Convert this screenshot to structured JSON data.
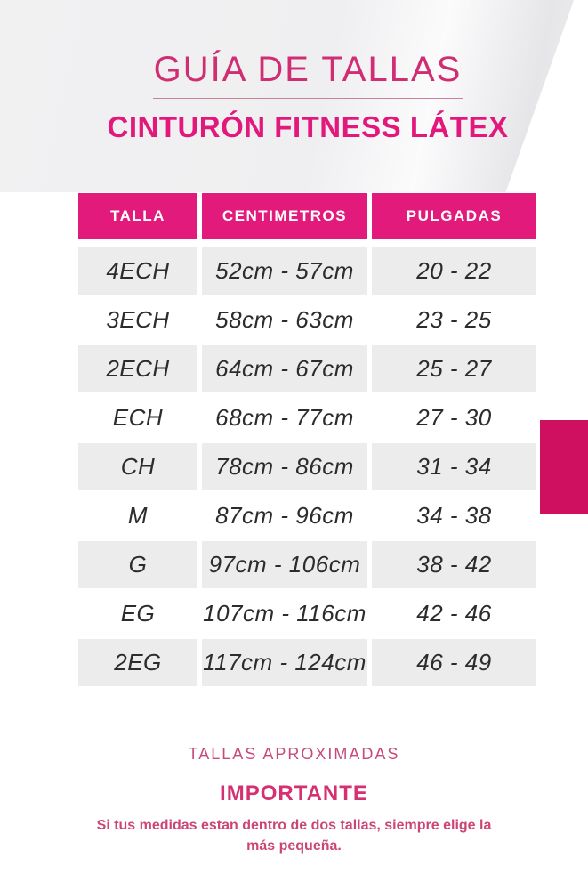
{
  "header": {
    "title": "GUÍA DE TALLAS",
    "subtitle": "CINTURÓN FITNESS LÁTEX"
  },
  "table": {
    "columns": [
      "TALLA",
      "CENTIMETROS",
      "PULGADAS"
    ],
    "rows": [
      {
        "talla": "4ECH",
        "centimetros": "52cm - 57cm",
        "pulgadas": "20 - 22"
      },
      {
        "talla": "3ECH",
        "centimetros": "58cm - 63cm",
        "pulgadas": "23 - 25"
      },
      {
        "talla": "2ECH",
        "centimetros": "64cm - 67cm",
        "pulgadas": "25 - 27"
      },
      {
        "talla": "ECH",
        "centimetros": "68cm - 77cm",
        "pulgadas": "27 - 30"
      },
      {
        "talla": "CH",
        "centimetros": "78cm - 86cm",
        "pulgadas": "31 - 34"
      },
      {
        "talla": "M",
        "centimetros": "87cm - 96cm",
        "pulgadas": "34 - 38"
      },
      {
        "talla": "G",
        "centimetros": "97cm - 106cm",
        "pulgadas": "38 - 42"
      },
      {
        "talla": "EG",
        "centimetros": "107cm - 116cm",
        "pulgadas": "42 - 46"
      },
      {
        "talla": "2EG",
        "centimetros": "117cm - 124cm",
        "pulgadas": "46 - 49"
      }
    ]
  },
  "footer": {
    "approx_label": "TALLAS APROXIMADAS",
    "important_title": "IMPORTANTE",
    "important_note": "Si tus medidas estan dentro de dos tallas, siempre elige la más pequeña."
  },
  "colors": {
    "header_pink": "#e21a7b",
    "accent_pink": "#cf1060",
    "title_pink": "#d02d72",
    "subtitle_pink": "#e2187c",
    "soft_pink": "#c64b7c",
    "important_pink": "#d53071",
    "note_pink": "#cd4576",
    "row_gray": "#ececec",
    "text_dark": "#2c2c2c"
  }
}
